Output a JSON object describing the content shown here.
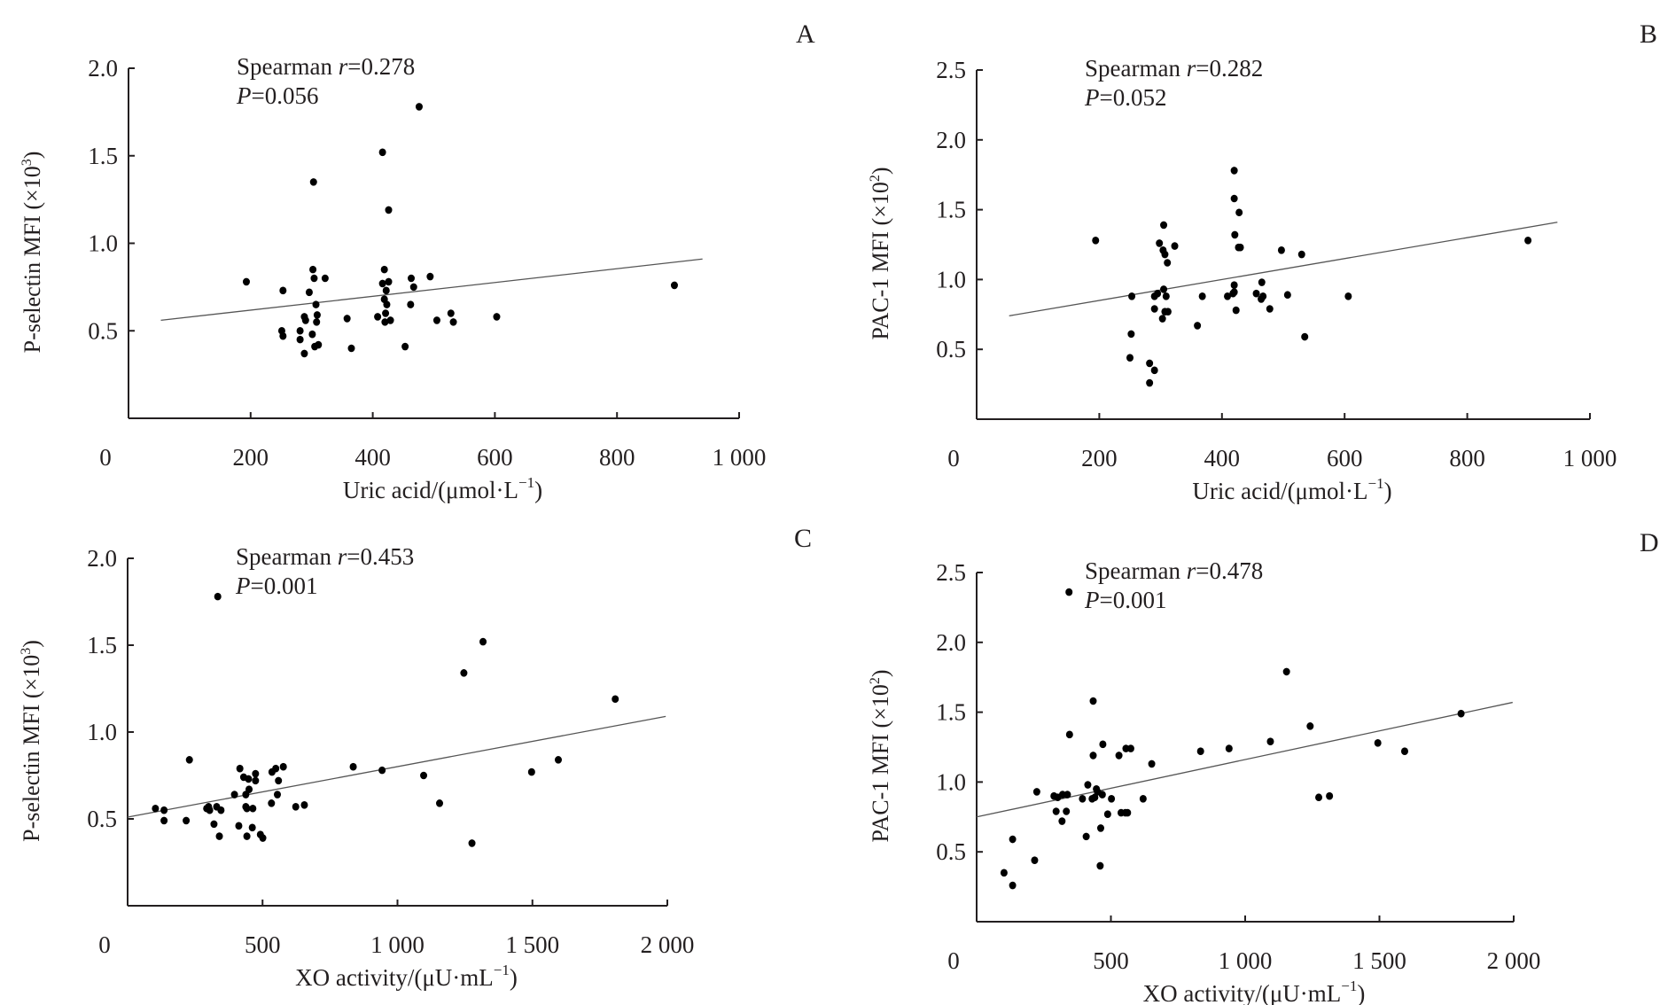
{
  "chart_data": [
    {
      "panel": "A",
      "type": "scatter",
      "ylabel": "P-selectin MFI (×10³)",
      "ylabel_main": "P-selectin MFI (×10",
      "ylabel_exp": "3",
      "xlabel_main": "Uric acid/(μmol·L",
      "xlabel_exp": "−1",
      "stat_r": "Spearman r=0.278",
      "stat_r_prefix": "Spearman ",
      "stat_r_value": "=0.278",
      "stat_p_value": "=0.056",
      "xlim": [
        0,
        1000
      ],
      "ylim": [
        0,
        2.0
      ],
      "xticks": [
        0,
        200,
        400,
        600,
        800,
        1000
      ],
      "xtick_labels": [
        "0",
        "200",
        "400",
        "600",
        "800",
        "1 000"
      ],
      "yticks": [
        0.5,
        1.0,
        1.5,
        2.0
      ],
      "ytick_labels": [
        "0.5",
        "1.0",
        "1.5",
        "2.0"
      ],
      "trendline": [
        [
          53,
          0.56
        ],
        [
          940,
          0.91
        ]
      ],
      "points": [
        [
          193,
          0.78
        ],
        [
          253,
          0.73
        ],
        [
          251,
          0.5
        ],
        [
          253,
          0.47
        ],
        [
          281,
          0.5
        ],
        [
          281,
          0.45
        ],
        [
          288,
          0.37
        ],
        [
          288,
          0.58
        ],
        [
          290,
          0.56
        ],
        [
          296,
          0.72
        ],
        [
          302,
          0.85
        ],
        [
          304,
          0.8
        ],
        [
          303,
          1.35
        ],
        [
          307,
          0.65
        ],
        [
          301,
          0.48
        ],
        [
          305,
          0.41
        ],
        [
          311,
          0.42
        ],
        [
          309,
          0.59
        ],
        [
          308,
          0.55
        ],
        [
          322,
          0.8
        ],
        [
          358,
          0.57
        ],
        [
          365,
          0.4
        ],
        [
          408,
          0.58
        ],
        [
          416,
          1.52
        ],
        [
          419,
          0.85
        ],
        [
          416,
          0.77
        ],
        [
          426,
          0.78
        ],
        [
          422,
          0.73
        ],
        [
          419,
          0.68
        ],
        [
          423,
          0.65
        ],
        [
          421,
          0.6
        ],
        [
          420,
          0.55
        ],
        [
          429,
          0.56
        ],
        [
          426,
          1.19
        ],
        [
          476,
          1.78
        ],
        [
          453,
          0.41
        ],
        [
          462,
          0.65
        ],
        [
          463,
          0.8
        ],
        [
          467,
          0.75
        ],
        [
          494,
          0.81
        ],
        [
          505,
          0.56
        ],
        [
          528,
          0.6
        ],
        [
          532,
          0.55
        ],
        [
          603,
          0.58
        ],
        [
          894,
          0.76
        ]
      ]
    },
    {
      "panel": "B",
      "type": "scatter",
      "ylabel": "PAC-1 MFI (×10²)",
      "ylabel_main": "PAC-1 MFI (×10",
      "ylabel_exp": "2",
      "xlabel_main": "Uric acid/(μmol·L",
      "xlabel_exp": "−1",
      "stat_r": "Spearman r=0.282",
      "stat_r_prefix": "Spearman ",
      "stat_r_value": "=0.282",
      "stat_p_value": "=0.052",
      "xlim": [
        0,
        1000
      ],
      "ylim": [
        0,
        2.5
      ],
      "xticks": [
        0,
        200,
        400,
        600,
        800,
        1000
      ],
      "xtick_labels": [
        "0",
        "200",
        "400",
        "600",
        "800",
        "1 000"
      ],
      "yticks": [
        0.5,
        1.0,
        1.5,
        2.0,
        2.5
      ],
      "ytick_labels": [
        "0.5",
        "1.0",
        "1.5",
        "2.0",
        "2.5"
      ],
      "trendline": [
        [
          53,
          0.74
        ],
        [
          947,
          1.41
        ]
      ],
      "points": [
        [
          194,
          1.28
        ],
        [
          253,
          0.88
        ],
        [
          252,
          0.61
        ],
        [
          250,
          0.44
        ],
        [
          282,
          0.4
        ],
        [
          290,
          0.35
        ],
        [
          282,
          0.26
        ],
        [
          290,
          0.79
        ],
        [
          290,
          0.88
        ],
        [
          295,
          0.9
        ],
        [
          298,
          1.26
        ],
        [
          304,
          1.21
        ],
        [
          307,
          1.18
        ],
        [
          305,
          1.39
        ],
        [
          311,
          1.12
        ],
        [
          305,
          0.93
        ],
        [
          309,
          0.88
        ],
        [
          303,
          0.72
        ],
        [
          307,
          0.77
        ],
        [
          312,
          0.77
        ],
        [
          323,
          1.24
        ],
        [
          368,
          0.88
        ],
        [
          360,
          0.67
        ],
        [
          409,
          0.88
        ],
        [
          420,
          1.78
        ],
        [
          420,
          1.58
        ],
        [
          428,
          1.48
        ],
        [
          421,
          1.32
        ],
        [
          427,
          1.23
        ],
        [
          430,
          1.23
        ],
        [
          420,
          0.96
        ],
        [
          420,
          0.91
        ],
        [
          418,
          0.9
        ],
        [
          423,
          0.78
        ],
        [
          456,
          0.9
        ],
        [
          465,
          0.98
        ],
        [
          467,
          0.88
        ],
        [
          464,
          0.86
        ],
        [
          478,
          0.79
        ],
        [
          497,
          1.21
        ],
        [
          507,
          0.89
        ],
        [
          530,
          1.18
        ],
        [
          535,
          0.59
        ],
        [
          606,
          0.88
        ],
        [
          899,
          1.28
        ]
      ]
    },
    {
      "panel": "C",
      "type": "scatter",
      "ylabel": "P-selectin MFI (×10³)",
      "ylabel_main": "P-selectin MFI (×10",
      "ylabel_exp": "3",
      "xlabel_main": "XO activity/(μU·mL",
      "xlabel_exp": "−1",
      "stat_r": "Spearman r=0.453",
      "stat_r_prefix": "Spearman ",
      "stat_r_value": "=0.453",
      "stat_p_value": "=0.001",
      "xlim": [
        0,
        2000
      ],
      "ylim": [
        0,
        2.0
      ],
      "xticks": [
        0,
        500,
        1000,
        1500,
        2000
      ],
      "xtick_labels": [
        "0",
        "500",
        "1 000",
        "1 500",
        "2 000"
      ],
      "yticks": [
        0.5,
        1.0,
        1.5,
        2.0
      ],
      "ytick_labels": [
        "0.5",
        "1.0",
        "1.5",
        "2.0"
      ],
      "trendline": [
        [
          0,
          0.51
        ],
        [
          1994,
          1.09
        ]
      ],
      "points": [
        [
          103,
          0.56
        ],
        [
          135,
          0.55
        ],
        [
          135,
          0.49
        ],
        [
          217,
          0.49
        ],
        [
          229,
          0.84
        ],
        [
          293,
          0.56
        ],
        [
          300,
          0.57
        ],
        [
          304,
          0.55
        ],
        [
          320,
          0.47
        ],
        [
          330,
          0.57
        ],
        [
          340,
          0.4
        ],
        [
          346,
          0.55
        ],
        [
          334,
          1.78
        ],
        [
          396,
          0.64
        ],
        [
          412,
          0.46
        ],
        [
          416,
          0.79
        ],
        [
          430,
          0.74
        ],
        [
          438,
          0.64
        ],
        [
          438,
          0.57
        ],
        [
          442,
          0.56
        ],
        [
          442,
          0.4
        ],
        [
          448,
          0.73
        ],
        [
          450,
          0.67
        ],
        [
          462,
          0.45
        ],
        [
          464,
          0.56
        ],
        [
          474,
          0.76
        ],
        [
          474,
          0.72
        ],
        [
          492,
          0.41
        ],
        [
          501,
          0.39
        ],
        [
          533,
          0.59
        ],
        [
          535,
          0.77
        ],
        [
          549,
          0.79
        ],
        [
          559,
          0.72
        ],
        [
          555,
          0.64
        ],
        [
          577,
          0.8
        ],
        [
          623,
          0.57
        ],
        [
          655,
          0.58
        ],
        [
          836,
          0.8
        ],
        [
          943,
          0.78
        ],
        [
          1097,
          0.75
        ],
        [
          1156,
          0.59
        ],
        [
          1246,
          1.34
        ],
        [
          1276,
          0.36
        ],
        [
          1317,
          1.52
        ],
        [
          1497,
          0.77
        ],
        [
          1596,
          0.84
        ],
        [
          1807,
          1.19
        ]
      ]
    },
    {
      "panel": "D",
      "type": "scatter",
      "ylabel": "PAC-1 MFI (×10²)",
      "ylabel_main": "PAC-1 MFI (×10",
      "ylabel_exp": "2",
      "xlabel_main": "XO activity/(μU·mL",
      "xlabel_exp": "−1",
      "stat_r": "Spearman r=0.478",
      "stat_r_prefix": "Spearman ",
      "stat_r_value": "=0.478",
      "stat_p_value": "=0.001",
      "xlim": [
        0,
        2000
      ],
      "ylim": [
        0,
        2.5
      ],
      "xticks": [
        0,
        500,
        1000,
        1500,
        2000
      ],
      "xtick_labels": [
        "0",
        "500",
        "1 000",
        "1 500",
        "2 000"
      ],
      "yticks": [
        0.5,
        1.0,
        1.5,
        2.0,
        2.5
      ],
      "ytick_labels": [
        "0.5",
        "1.0",
        "1.5",
        "2.0",
        "2.5"
      ],
      "trendline": [
        [
          0,
          0.75
        ],
        [
          1996,
          1.57
        ]
      ],
      "points": [
        [
          102,
          0.35
        ],
        [
          134,
          0.26
        ],
        [
          134,
          0.59
        ],
        [
          216,
          0.44
        ],
        [
          224,
          0.93
        ],
        [
          288,
          0.9
        ],
        [
          296,
          0.79
        ],
        [
          302,
          0.89
        ],
        [
          318,
          0.72
        ],
        [
          320,
          0.91
        ],
        [
          334,
          0.79
        ],
        [
          338,
          0.91
        ],
        [
          344,
          2.36
        ],
        [
          346,
          1.34
        ],
        [
          394,
          0.88
        ],
        [
          408,
          0.61
        ],
        [
          414,
          0.98
        ],
        [
          434,
          1.58
        ],
        [
          434,
          1.19
        ],
        [
          430,
          0.88
        ],
        [
          440,
          0.89
        ],
        [
          446,
          0.95
        ],
        [
          450,
          0.93
        ],
        [
          460,
          0.4
        ],
        [
          462,
          0.67
        ],
        [
          468,
          0.91
        ],
        [
          470,
          1.27
        ],
        [
          488,
          0.77
        ],
        [
          502,
          0.88
        ],
        [
          530,
          1.19
        ],
        [
          538,
          0.78
        ],
        [
          554,
          0.78
        ],
        [
          562,
          0.78
        ],
        [
          556,
          1.24
        ],
        [
          574,
          1.24
        ],
        [
          620,
          0.88
        ],
        [
          652,
          1.13
        ],
        [
          834,
          1.22
        ],
        [
          940,
          1.24
        ],
        [
          1094,
          1.29
        ],
        [
          1154,
          1.79
        ],
        [
          1242,
          1.4
        ],
        [
          1274,
          0.89
        ],
        [
          1314,
          0.9
        ],
        [
          1494,
          1.28
        ],
        [
          1594,
          1.22
        ],
        [
          1804,
          1.49
        ]
      ]
    }
  ],
  "labels": {
    "r_symbol": "r",
    "p_symbol": "P"
  }
}
